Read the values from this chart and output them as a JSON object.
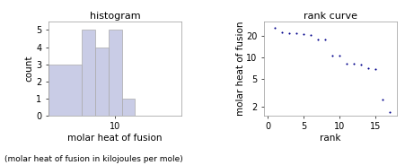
{
  "hist_title": "histogram",
  "hist_xlabel": "molar heat of fusion",
  "hist_ylabel": "count",
  "rank_title": "rank curve",
  "rank_xlabel": "rank",
  "rank_ylabel": "molar heat of fusion",
  "footnote": "(molar heat of fusion in kilojoules per mole)",
  "rank_values": [
    25.7,
    22.8,
    22.0,
    21.8,
    21.0,
    20.4,
    18.0,
    17.9,
    10.6,
    10.5,
    8.2,
    8.0,
    7.9,
    7.0,
    6.8,
    2.5,
    1.7
  ],
  "rank_x": [
    1,
    2,
    3,
    4,
    5,
    6,
    7,
    8,
    9,
    10,
    11,
    12,
    13,
    14,
    15,
    16,
    17
  ],
  "hist_bar_color": "#c9cce6",
  "hist_edge_color": "#aaaaaa",
  "rank_dot_color": "#00008b",
  "rank_xlim": [
    -0.5,
    18
  ],
  "rank_yticks": [
    2,
    5,
    10,
    20
  ],
  "rank_xticks": [
    0,
    5,
    10,
    15
  ],
  "hist_xlim": [
    0,
    20
  ],
  "hist_ylim": [
    0,
    5.5
  ],
  "hist_yticks": [
    0,
    1,
    2,
    3,
    4,
    5
  ],
  "hist_bins": [
    0,
    5,
    7,
    9,
    11,
    13,
    15
  ],
  "hist_counts": [
    3,
    5,
    4,
    5,
    1,
    0
  ]
}
